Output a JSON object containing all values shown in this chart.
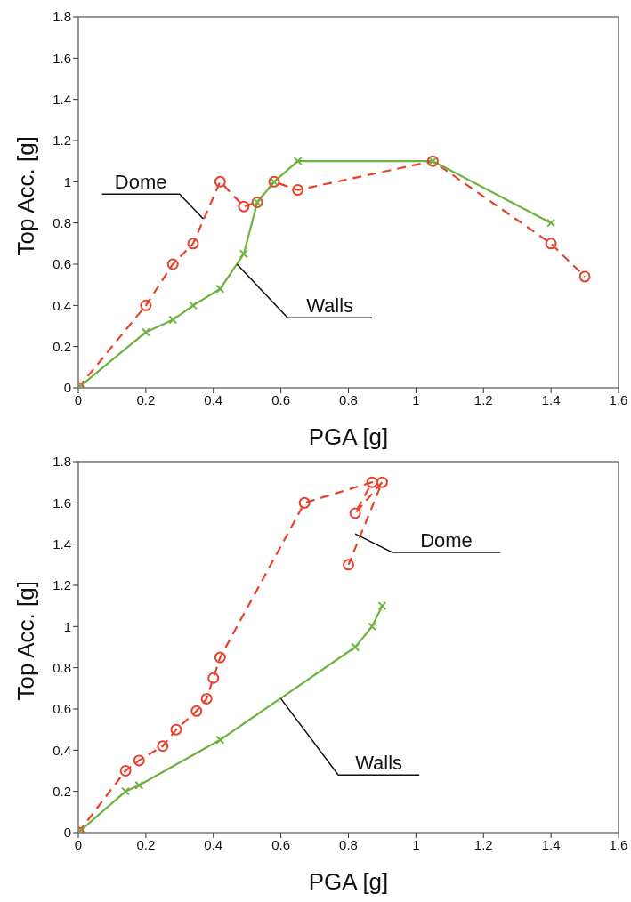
{
  "chart_data": [
    {
      "type": "line",
      "xlabel": "PGA [g]",
      "ylabel": "Top Acc. [g]",
      "xlim": [
        0,
        1.6
      ],
      "ylim": [
        0,
        1.8
      ],
      "xticks": [
        0,
        0.2,
        0.4,
        0.6,
        0.8,
        1,
        1.2,
        1.4,
        1.6
      ],
      "yticks": [
        0,
        0.2,
        0.4,
        0.6,
        0.8,
        1,
        1.2,
        1.4,
        1.6,
        1.8
      ],
      "grid": false,
      "legend": false,
      "series": [
        {
          "name": "Dome",
          "color": "#e8412c",
          "marker": "circle",
          "line_style": "dashed",
          "x": [
            0,
            0.2,
            0.28,
            0.34,
            0.42,
            0.49,
            0.53,
            0.58,
            0.65,
            1.05,
            1.4,
            1.5
          ],
          "values": [
            0,
            0.4,
            0.6,
            0.7,
            1.0,
            0.88,
            0.9,
            1.0,
            0.96,
            1.1,
            0.7,
            0.54
          ]
        },
        {
          "name": "Walls",
          "color": "#6db33f",
          "marker": "cross",
          "line_style": "solid",
          "x": [
            0,
            0.2,
            0.28,
            0.34,
            0.42,
            0.49,
            0.53,
            0.58,
            0.65,
            1.05,
            1.4
          ],
          "values": [
            0,
            0.27,
            0.33,
            0.4,
            0.48,
            0.65,
            0.9,
            1.0,
            1.1,
            1.1,
            0.8
          ]
        }
      ]
    },
    {
      "type": "line",
      "xlabel": "PGA [g]",
      "ylabel": "Top Acc. [g]",
      "xlim": [
        0,
        1.6
      ],
      "ylim": [
        0,
        1.8
      ],
      "xticks": [
        0,
        0.2,
        0.4,
        0.6,
        0.8,
        1,
        1.2,
        1.4,
        1.6
      ],
      "yticks": [
        0,
        0.2,
        0.4,
        0.6,
        0.8,
        1,
        1.2,
        1.4,
        1.6,
        1.8
      ],
      "grid": false,
      "legend": false,
      "series": [
        {
          "name": "Dome",
          "color": "#e8412c",
          "marker": "circle",
          "line_style": "dashed",
          "x": [
            0,
            0.14,
            0.18,
            0.25,
            0.29,
            0.35,
            0.38,
            0.4,
            0.42,
            0.67,
            0.87,
            0.82,
            0.9,
            0.8
          ],
          "values": [
            0,
            0.3,
            0.35,
            0.42,
            0.5,
            0.59,
            0.65,
            0.75,
            0.85,
            1.6,
            1.7,
            1.55,
            1.7,
            1.3
          ]
        },
        {
          "name": "Walls",
          "color": "#6db33f",
          "marker": "cross",
          "line_style": "solid",
          "x": [
            0,
            0.14,
            0.18,
            0.42,
            0.82,
            0.87,
            0.9
          ],
          "values": [
            0,
            0.2,
            0.23,
            0.45,
            0.9,
            1.0,
            1.1
          ]
        }
      ]
    }
  ]
}
